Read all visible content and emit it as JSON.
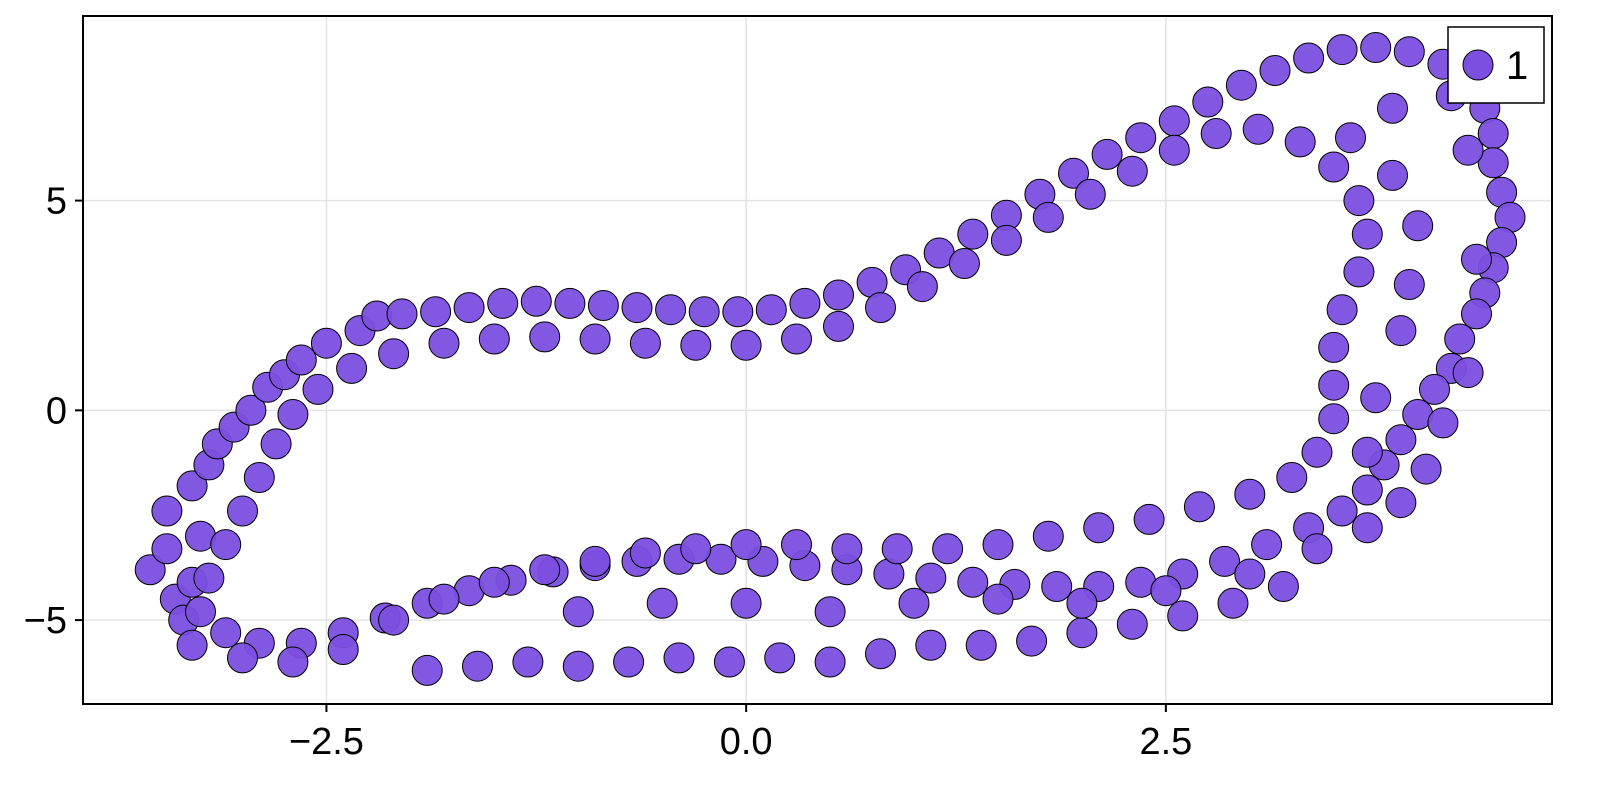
{
  "chart_data": {
    "type": "scatter",
    "title": "",
    "xlabel": "",
    "ylabel": "",
    "xlim": [
      -3.95,
      4.8
    ],
    "ylim": [
      -7.0,
      9.4
    ],
    "xticks": [
      -2.5,
      0.0,
      2.5
    ],
    "xtick_labels": [
      "−2.5",
      "0.0",
      "2.5"
    ],
    "yticks": [
      -5,
      0,
      5
    ],
    "ytick_labels": [
      "−5",
      "0",
      "5"
    ],
    "grid": true,
    "legend_position": "top-right",
    "marker_color": "#7b4fe0",
    "marker_edge_color": "#000000",
    "series": [
      {
        "name": "1",
        "color": "#7b4fe0",
        "points": [
          [
            -3.55,
            -3.8
          ],
          [
            -3.45,
            -3.3
          ],
          [
            -3.4,
            -4.5
          ],
          [
            -3.35,
            -5.0
          ],
          [
            -3.3,
            -4.1
          ],
          [
            -3.25,
            -3.0
          ],
          [
            -3.45,
            -2.4
          ],
          [
            -3.3,
            -1.8
          ],
          [
            -3.2,
            -1.3
          ],
          [
            -3.15,
            -0.8
          ],
          [
            -3.05,
            -0.4
          ],
          [
            -2.95,
            0.0
          ],
          [
            -2.85,
            0.55
          ],
          [
            -2.75,
            0.85
          ],
          [
            -2.65,
            1.2
          ],
          [
            -2.5,
            1.6
          ],
          [
            -2.3,
            1.9
          ],
          [
            -2.2,
            2.25
          ],
          [
            -2.05,
            2.3
          ],
          [
            -1.85,
            2.35
          ],
          [
            -1.65,
            2.45
          ],
          [
            -1.45,
            2.55
          ],
          [
            -1.25,
            2.6
          ],
          [
            -1.05,
            2.55
          ],
          [
            -0.85,
            2.5
          ],
          [
            -0.65,
            2.45
          ],
          [
            -0.45,
            2.4
          ],
          [
            -0.25,
            2.35
          ],
          [
            -0.05,
            2.35
          ],
          [
            0.15,
            2.4
          ],
          [
            0.35,
            2.55
          ],
          [
            0.55,
            2.75
          ],
          [
            0.75,
            3.05
          ],
          [
            0.95,
            3.35
          ],
          [
            1.15,
            3.75
          ],
          [
            1.35,
            4.2
          ],
          [
            1.55,
            4.65
          ],
          [
            1.75,
            5.15
          ],
          [
            1.95,
            5.65
          ],
          [
            2.15,
            6.1
          ],
          [
            2.35,
            6.5
          ],
          [
            2.55,
            6.9
          ],
          [
            2.75,
            7.35
          ],
          [
            2.95,
            7.75
          ],
          [
            3.15,
            8.1
          ],
          [
            3.35,
            8.4
          ],
          [
            3.55,
            8.6
          ],
          [
            3.75,
            8.65
          ],
          [
            3.95,
            8.55
          ],
          [
            4.15,
            8.25
          ],
          [
            4.3,
            7.8
          ],
          [
            4.4,
            7.2
          ],
          [
            4.45,
            6.6
          ],
          [
            4.45,
            5.9
          ],
          [
            4.5,
            5.2
          ],
          [
            4.55,
            4.6
          ],
          [
            4.5,
            4.0
          ],
          [
            4.45,
            3.4
          ],
          [
            4.4,
            2.8
          ],
          [
            4.35,
            2.3
          ],
          [
            4.25,
            1.7
          ],
          [
            4.2,
            1.0
          ],
          [
            4.1,
            0.5
          ],
          [
            4.0,
            -0.1
          ],
          [
            3.9,
            -0.7
          ],
          [
            3.8,
            -1.3
          ],
          [
            3.7,
            -1.9
          ],
          [
            3.55,
            -2.4
          ],
          [
            3.35,
            -2.8
          ],
          [
            3.1,
            -3.2
          ],
          [
            2.85,
            -3.6
          ],
          [
            2.6,
            -3.9
          ],
          [
            2.35,
            -4.1
          ],
          [
            2.1,
            -4.2
          ],
          [
            1.85,
            -4.2
          ],
          [
            1.6,
            -4.15
          ],
          [
            1.35,
            -4.1
          ],
          [
            1.1,
            -4.0
          ],
          [
            0.85,
            -3.9
          ],
          [
            0.6,
            -3.8
          ],
          [
            0.35,
            -3.7
          ],
          [
            0.1,
            -3.6
          ],
          [
            -0.15,
            -3.55
          ],
          [
            -0.4,
            -3.55
          ],
          [
            -0.65,
            -3.6
          ],
          [
            -0.9,
            -3.7
          ],
          [
            -1.15,
            -3.85
          ],
          [
            -1.4,
            -4.05
          ],
          [
            -1.65,
            -4.3
          ],
          [
            -1.9,
            -4.6
          ],
          [
            -2.15,
            -4.95
          ],
          [
            -2.4,
            -5.3
          ],
          [
            -2.65,
            -5.55
          ],
          [
            -2.9,
            -5.55
          ],
          [
            -3.1,
            -5.3
          ],
          [
            -3.25,
            -4.8
          ],
          [
            -3.2,
            -4.0
          ],
          [
            -3.1,
            -3.2
          ],
          [
            -3.0,
            -2.4
          ],
          [
            -2.9,
            -1.6
          ],
          [
            -2.8,
            -0.8
          ],
          [
            -2.7,
            -0.1
          ],
          [
            -2.55,
            0.5
          ],
          [
            -2.35,
            1.0
          ],
          [
            -2.1,
            1.35
          ],
          [
            -1.8,
            1.6
          ],
          [
            -1.5,
            1.7
          ],
          [
            -1.2,
            1.75
          ],
          [
            -0.9,
            1.7
          ],
          [
            -0.6,
            1.6
          ],
          [
            -0.3,
            1.55
          ],
          [
            0.0,
            1.55
          ],
          [
            0.3,
            1.7
          ],
          [
            0.55,
            2.0
          ],
          [
            0.8,
            2.45
          ],
          [
            1.05,
            2.95
          ],
          [
            1.3,
            3.5
          ],
          [
            1.55,
            4.05
          ],
          [
            1.8,
            4.6
          ],
          [
            2.05,
            5.15
          ],
          [
            2.3,
            5.7
          ],
          [
            2.55,
            6.2
          ],
          [
            2.8,
            6.6
          ],
          [
            3.05,
            6.7
          ],
          [
            3.3,
            6.4
          ],
          [
            3.5,
            5.8
          ],
          [
            3.65,
            5.0
          ],
          [
            3.7,
            4.2
          ],
          [
            3.65,
            3.3
          ],
          [
            3.55,
            2.4
          ],
          [
            3.5,
            1.5
          ],
          [
            3.5,
            0.6
          ],
          [
            3.5,
            -0.2
          ],
          [
            3.4,
            -1.0
          ],
          [
            3.25,
            -1.6
          ],
          [
            3.0,
            -2.0
          ],
          [
            2.7,
            -2.3
          ],
          [
            2.4,
            -2.6
          ],
          [
            2.1,
            -2.8
          ],
          [
            1.8,
            -3.0
          ],
          [
            1.5,
            -3.2
          ],
          [
            1.2,
            -3.3
          ],
          [
            0.9,
            -3.3
          ],
          [
            0.6,
            -3.3
          ],
          [
            0.3,
            -3.2
          ],
          [
            0.0,
            -3.2
          ],
          [
            -0.3,
            -3.3
          ],
          [
            -0.6,
            -3.4
          ],
          [
            -0.9,
            -3.6
          ],
          [
            -1.2,
            -3.8
          ],
          [
            -1.5,
            -4.1
          ],
          [
            -1.8,
            -4.5
          ],
          [
            -2.1,
            -5.0
          ],
          [
            -2.4,
            -5.7
          ],
          [
            -2.7,
            -6.0
          ],
          [
            -3.0,
            -5.9
          ],
          [
            -3.3,
            -5.6
          ],
          [
            -1.9,
            -6.2
          ],
          [
            -1.6,
            -6.1
          ],
          [
            -1.3,
            -6.0
          ],
          [
            -1.0,
            -6.1
          ],
          [
            -0.7,
            -6.0
          ],
          [
            -0.4,
            -5.9
          ],
          [
            -0.1,
            -6.0
          ],
          [
            0.2,
            -5.9
          ],
          [
            0.5,
            -6.0
          ],
          [
            0.8,
            -5.8
          ],
          [
            1.1,
            -5.6
          ],
          [
            1.4,
            -5.6
          ],
          [
            1.7,
            -5.5
          ],
          [
            2.0,
            -5.3
          ],
          [
            2.3,
            -5.1
          ],
          [
            2.6,
            -4.9
          ],
          [
            2.9,
            -4.6
          ],
          [
            3.2,
            -4.2
          ],
          [
            -1.0,
            -4.8
          ],
          [
            -0.5,
            -4.6
          ],
          [
            0.0,
            -4.6
          ],
          [
            0.5,
            -4.8
          ],
          [
            1.0,
            -4.6
          ],
          [
            1.5,
            -4.5
          ],
          [
            2.0,
            -4.6
          ],
          [
            2.5,
            -4.3
          ],
          [
            3.0,
            -3.9
          ],
          [
            3.4,
            -3.3
          ],
          [
            3.7,
            -2.8
          ],
          [
            3.9,
            -2.2
          ],
          [
            4.05,
            -1.4
          ],
          [
            4.15,
            -0.3
          ],
          [
            4.3,
            0.9
          ],
          [
            4.35,
            3.6
          ],
          [
            4.3,
            6.2
          ],
          [
            4.2,
            7.5
          ],
          [
            3.85,
            7.2
          ],
          [
            3.6,
            6.5
          ],
          [
            3.85,
            5.6
          ],
          [
            4.0,
            4.4
          ],
          [
            3.95,
            3.0
          ],
          [
            3.9,
            1.9
          ],
          [
            3.75,
            0.3
          ],
          [
            3.7,
            -1.0
          ]
        ]
      }
    ]
  }
}
